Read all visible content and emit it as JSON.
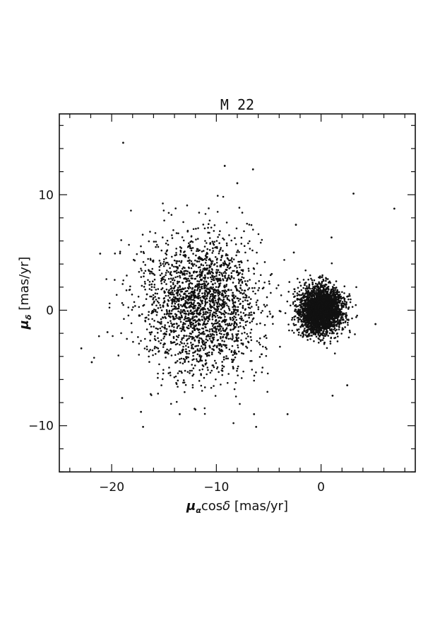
{
  "chart_data": {
    "type": "scatter",
    "title": "M 22",
    "xlabel": "μαcosδ [mas/yr]",
    "ylabel": "μδ [mas/yr]",
    "xlim": [
      -25,
      9
    ],
    "ylim": [
      -14,
      17
    ],
    "grid": false,
    "legend": "none",
    "x_ticks": [
      -20,
      -10,
      0
    ],
    "y_ticks": [
      -10,
      0,
      10
    ],
    "x_tick_labels": [
      "−20",
      "−10",
      "0"
    ],
    "y_tick_labels": [
      "−10",
      "0",
      "10"
    ],
    "marker_color": "#111111",
    "field_population": {
      "center": [
        -11.5,
        0.5
      ],
      "spread": [
        2.8,
        2.8
      ],
      "count": 2200
    },
    "cluster_population": {
      "center": [
        0,
        0
      ],
      "spread": [
        1.0,
        1.0
      ],
      "count": 3000
    },
    "outliers": [
      {
        "x": -18.9,
        "y": 14.5
      },
      {
        "x": -21.1,
        "y": 4.9
      },
      {
        "x": -22.9,
        "y": -3.3
      },
      {
        "x": -21.9,
        "y": -4.5
      },
      {
        "x": -20.4,
        "y": -1.9
      },
      {
        "x": -19.0,
        "y": -7.6
      },
      {
        "x": -17.2,
        "y": -8.8
      },
      {
        "x": -17.0,
        "y": -10.1
      },
      {
        "x": -13.5,
        "y": -9.0
      },
      {
        "x": -12.0,
        "y": -8.6
      },
      {
        "x": -6.4,
        "y": -9.0
      },
      {
        "x": -6.2,
        "y": -10.1
      },
      {
        "x": -3.2,
        "y": -9.0
      },
      {
        "x": 1.0,
        "y": 6.3
      },
      {
        "x": 3.1,
        "y": 10.1
      },
      {
        "x": 7.0,
        "y": 8.8
      },
      {
        "x": -9.2,
        "y": 12.5
      },
      {
        "x": -6.5,
        "y": 12.2
      },
      {
        "x": -8.0,
        "y": 11.0
      },
      {
        "x": 5.2,
        "y": -1.2
      },
      {
        "x": 2.5,
        "y": -6.5
      },
      {
        "x": 1.1,
        "y": -7.4
      },
      {
        "x": -2.4,
        "y": 7.4
      },
      {
        "x": -2.6,
        "y": 5.0
      }
    ]
  }
}
